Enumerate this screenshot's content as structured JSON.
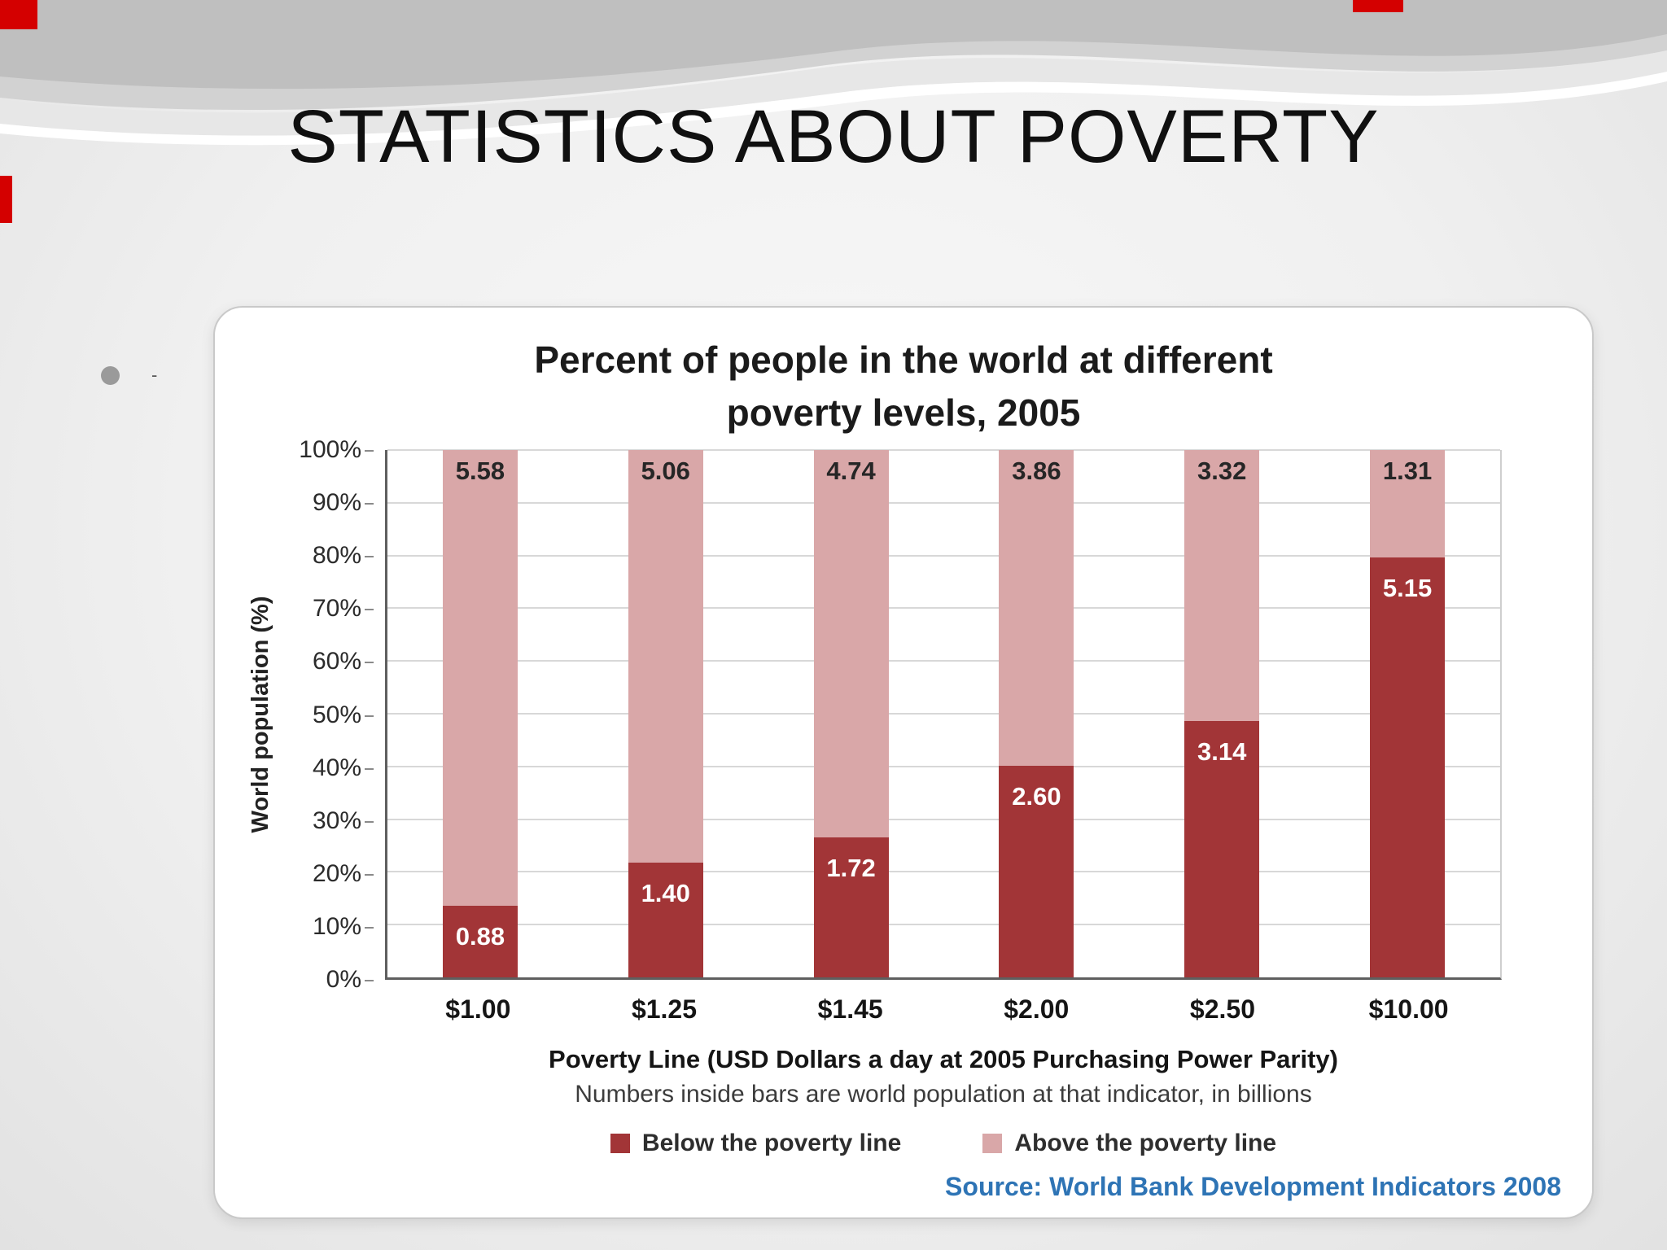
{
  "slide": {
    "title": "STATISTICS ABOUT POVERTY",
    "bullet_marker": "-"
  },
  "chart_data": {
    "type": "bar",
    "stacked": true,
    "title": "Percent of people in the world at different poverty levels, 2005",
    "title_lines": [
      "Percent of people in the world at different",
      "poverty levels, 2005"
    ],
    "ylabel": "World population (%)",
    "xlabel": "Poverty Line (USD Dollars a day at 2005 Purchasing Power Parity)",
    "xlabel_note": "Numbers inside bars are world population at that indicator, in billions",
    "source": "Source: World Bank Development Indicators 2008",
    "ylim": [
      0,
      100
    ],
    "ytick_step": 10,
    "ytick_labels": [
      "100%",
      "90%",
      "80%",
      "70%",
      "60%",
      "50%",
      "40%",
      "30%",
      "20%",
      "10%",
      "0%"
    ],
    "categories": [
      "$1.00",
      "$1.25",
      "$1.45",
      "$2.00",
      "$2.50",
      "$10.00"
    ],
    "series": [
      {
        "name": "Below the poverty line",
        "color": "#a23537",
        "unit": "billions of people",
        "values": [
          0.88,
          1.4,
          1.72,
          2.6,
          3.14,
          5.15
        ],
        "labels": [
          "0.88",
          "1.40",
          "1.72",
          "2.60",
          "3.14",
          "5.15"
        ]
      },
      {
        "name": "Above the poverty line",
        "color": "#d9a7a8",
        "unit": "billions of people",
        "values": [
          5.58,
          5.06,
          4.74,
          3.86,
          3.32,
          1.31
        ],
        "labels": [
          "5.58",
          "5.06",
          "4.74",
          "3.86",
          "3.32",
          "1.31"
        ]
      }
    ],
    "percent_below": [
      13.6,
      21.7,
      26.6,
      40.2,
      48.6,
      79.7
    ],
    "legend_position": "bottom",
    "grid": true
  },
  "colors": {
    "below_series": "#a23537",
    "above_series": "#d9a7a8",
    "source_text": "#2e74b5",
    "accent_red": "#d40000"
  }
}
